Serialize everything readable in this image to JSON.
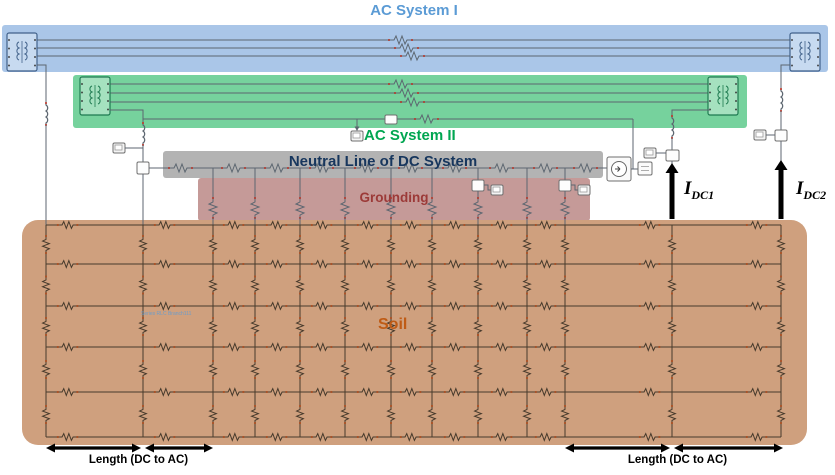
{
  "diagram": {
    "title_ac1": "AC System I",
    "label_ac2": "AC System II",
    "label_neutral": "Neutral Line of DC System",
    "label_grounding": "Grounding",
    "label_soil": "Soil",
    "label_branch": "Series RLC Branch111",
    "label_length_left": "Length (DC to AC)",
    "label_length_right": "Length (DC to AC)",
    "idc1": {
      "symbol": "I",
      "sub": "DC1"
    },
    "idc2": {
      "symbol": "I",
      "sub": "DC2"
    }
  },
  "colors": {
    "ac1_region": "#aac6e8",
    "ac1_text": "#5b9bd5",
    "ac2_region": "#76d29d",
    "ac2_text": "#00a651",
    "neutral_region": "#b3b3b3",
    "neutral_text": "#17365d",
    "grounding_region": "#c59a98",
    "grounding_text": "#9c3a38",
    "soil_region": "#cfa07e",
    "soil_text": "#bf5b15",
    "branch_text": "#6d9dc9",
    "arrow": "#000000"
  }
}
